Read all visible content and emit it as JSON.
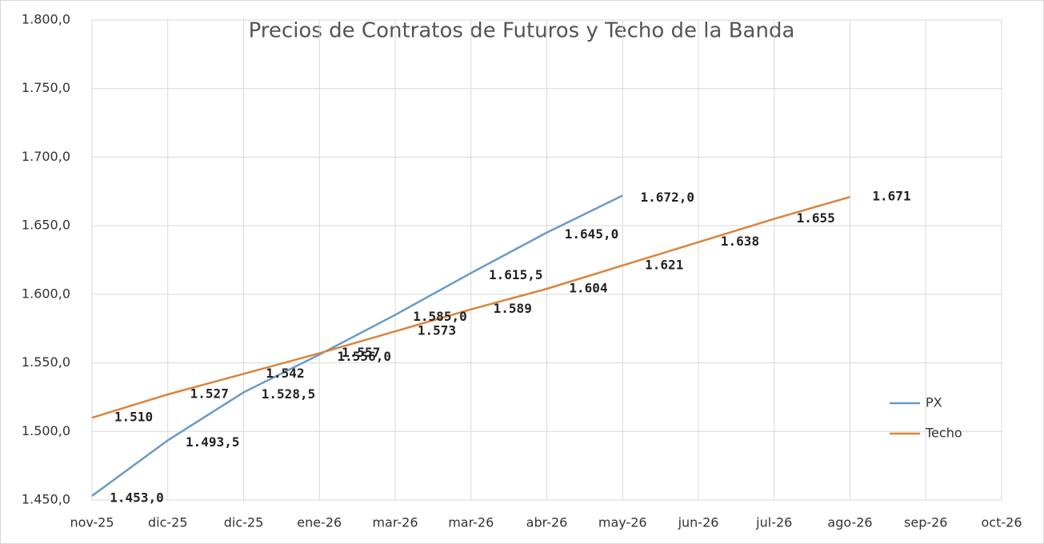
{
  "chart_data": {
    "type": "line",
    "title": "Precios de Contratos de Futuros y Techo de la Banda",
    "categories": [
      "nov-25",
      "dic-25",
      "dic-25",
      "ene-26",
      "mar-26",
      "mar-26",
      "abr-26",
      "may-26",
      "jun-26",
      "jul-26",
      "ago-26",
      "sep-26",
      "oct-26"
    ],
    "series": [
      {
        "name": "PX",
        "color": "#6a9ac6",
        "values": [
          1453.0,
          1493.5,
          1528.5,
          1556.0,
          1585.0,
          1615.5,
          1645.0,
          1672.0,
          null,
          null,
          null,
          null,
          null
        ],
        "value_labels": [
          "1.453,0",
          "1.493,5",
          "1.528,5",
          "1.556,0",
          "1.585,0",
          "1.615,5",
          "1.645,0",
          "1.672,0",
          null,
          null,
          null,
          null,
          null
        ]
      },
      {
        "name": "Techo",
        "color": "#d9853b",
        "values": [
          1510,
          1527,
          1542,
          1557,
          1573,
          1589,
          1604,
          1621,
          1638,
          1655,
          1671,
          null,
          null
        ],
        "value_labels": [
          "1.510",
          "1.527",
          "1.542",
          "1.557",
          "1.573",
          "1.589",
          "1.604",
          "1.621",
          "1.638",
          "1.655",
          "1.671",
          null,
          null
        ]
      }
    ],
    "ylim": [
      1450,
      1800
    ],
    "yticks": [
      {
        "value": 1450,
        "label": "1.450,0"
      },
      {
        "value": 1500,
        "label": "1.500,0"
      },
      {
        "value": 1550,
        "label": "1.550,0"
      },
      {
        "value": 1600,
        "label": "1.600,0"
      },
      {
        "value": 1650,
        "label": "1.650,0"
      },
      {
        "value": 1700,
        "label": "1.700,0"
      },
      {
        "value": 1750,
        "label": "1.750,0"
      },
      {
        "value": 1800,
        "label": "1.800,0"
      }
    ],
    "grid": true,
    "legend": "right"
  }
}
